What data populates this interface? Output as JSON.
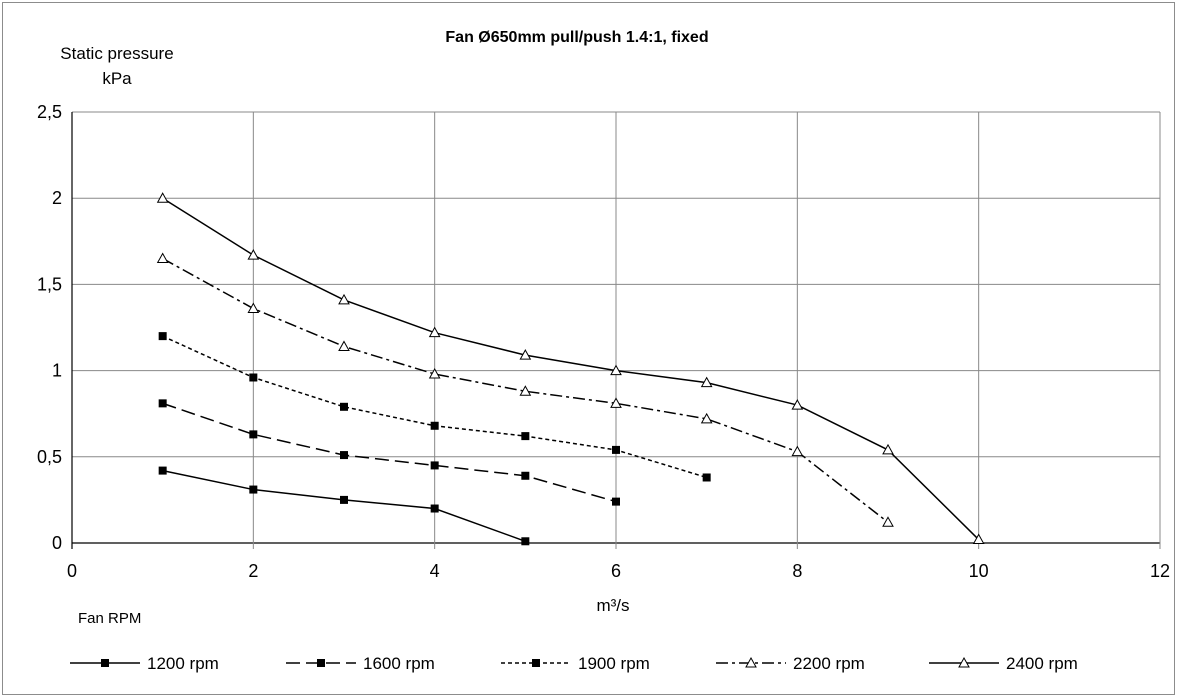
{
  "chart_data": {
    "type": "line",
    "title": "Fan Ø650mm pull/push 1.4:1, fixed",
    "ylabel_line1": "Static pressure",
    "ylabel_line2": "kPa",
    "xlabel": "m³/s",
    "legend_title": "Fan RPM",
    "legend_position": "bottom",
    "grid": true,
    "xlim": [
      0,
      12
    ],
    "ylim": [
      0,
      2.5
    ],
    "x_ticks": [
      0,
      2,
      4,
      6,
      8,
      10,
      12
    ],
    "x_tick_labels": [
      "0",
      "2",
      "4",
      "6",
      "8",
      "10",
      "12"
    ],
    "y_ticks": [
      0,
      0.5,
      1,
      1.5,
      2,
      2.5
    ],
    "y_tick_labels": [
      "0",
      "0,5",
      "1",
      "1,5",
      "2",
      "2,5"
    ],
    "series": [
      {
        "name": "1200 rpm",
        "marker": "square",
        "dash": "solid",
        "x": [
          1,
          2,
          3,
          4,
          5
        ],
        "y": [
          0.42,
          0.31,
          0.25,
          0.2,
          0.01
        ]
      },
      {
        "name": "1600 rpm",
        "marker": "square",
        "dash": "dash",
        "x": [
          1,
          2,
          3,
          4,
          5,
          6
        ],
        "y": [
          0.81,
          0.63,
          0.51,
          0.45,
          0.39,
          0.24
        ]
      },
      {
        "name": "1900 rpm",
        "marker": "square",
        "dash": "dot",
        "x": [
          1,
          2,
          3,
          4,
          5,
          6,
          7
        ],
        "y": [
          1.2,
          0.96,
          0.79,
          0.68,
          0.62,
          0.54,
          0.38
        ]
      },
      {
        "name": "2200 rpm",
        "marker": "triangle",
        "dash": "dashdot",
        "x": [
          1,
          2,
          3,
          4,
          5,
          6,
          7,
          8,
          9
        ],
        "y": [
          1.65,
          1.36,
          1.14,
          0.98,
          0.88,
          0.81,
          0.72,
          0.53,
          0.12
        ]
      },
      {
        "name": "2400 rpm",
        "marker": "triangle",
        "dash": "solid",
        "x": [
          1,
          2,
          3,
          4,
          5,
          6,
          7,
          8,
          9,
          10
        ],
        "y": [
          2.0,
          1.67,
          1.41,
          1.22,
          1.09,
          1.0,
          0.93,
          0.8,
          0.54,
          0.02
        ]
      }
    ]
  }
}
